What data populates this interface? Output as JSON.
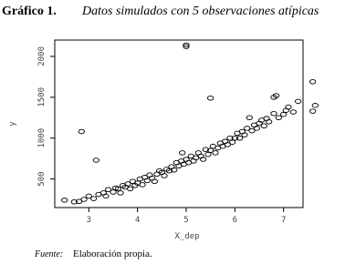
{
  "chart_data": {
    "type": "scatter",
    "title_number": "Gráfico 1.",
    "title": "Datos simulados con  5 observaciones atípicas",
    "x_label": "X_dep",
    "y_label": "y",
    "x": [
      2.5,
      2.7,
      2.8,
      2.9,
      3.0,
      3.1,
      3.2,
      3.3,
      3.35,
      3.4,
      3.5,
      3.55,
      3.6,
      3.65,
      3.7,
      3.75,
      3.8,
      3.85,
      3.9,
      3.95,
      4.0,
      4.05,
      4.1,
      4.15,
      4.2,
      4.25,
      4.3,
      4.35,
      4.4,
      4.45,
      4.5,
      4.55,
      4.6,
      4.65,
      4.7,
      4.75,
      4.8,
      4.85,
      4.9,
      4.92,
      4.95,
      5.0,
      5.05,
      5.1,
      5.15,
      5.2,
      5.25,
      5.3,
      5.35,
      5.4,
      5.45,
      5.5,
      5.55,
      5.6,
      5.65,
      5.7,
      5.75,
      5.8,
      5.85,
      5.9,
      5.95,
      6.0,
      6.05,
      6.1,
      6.15,
      6.2,
      6.25,
      6.3,
      6.35,
      6.4,
      6.45,
      6.5,
      6.55,
      6.6,
      6.65,
      6.7,
      6.8,
      6.9,
      7.0,
      7.05,
      7.1,
      7.2,
      7.3,
      7.6,
      7.65,
      2.85,
      3.15,
      5.0,
      5.0,
      5.5,
      6.8,
      6.85,
      7.6
    ],
    "y": [
      240,
      220,
      225,
      250,
      290,
      260,
      310,
      330,
      290,
      370,
      340,
      390,
      380,
      330,
      420,
      400,
      440,
      380,
      470,
      420,
      450,
      500,
      430,
      520,
      480,
      550,
      510,
      470,
      560,
      600,
      580,
      540,
      620,
      600,
      650,
      610,
      700,
      660,
      720,
      820,
      680,
      740,
      700,
      780,
      720,
      760,
      820,
      780,
      740,
      860,
      800,
      850,
      900,
      820,
      880,
      940,
      900,
      960,
      920,
      1000,
      950,
      1000,
      1060,
      1000,
      1080,
      1040,
      1120,
      1250,
      1090,
      1160,
      1120,
      1180,
      1220,
      1150,
      1240,
      1200,
      1300,
      1250,
      1290,
      1340,
      1380,
      1320,
      1450,
      1330,
      1400,
      1080,
      730,
      2140,
      2120,
      1490,
      1500,
      1520,
      1690
    ],
    "xlim": [
      2.3,
      7.4
    ],
    "ylim": [
      150,
      2200
    ],
    "xticks": [
      3,
      4,
      5,
      6,
      7
    ],
    "yticks": [
      500,
      1000,
      1500,
      2000
    ],
    "color": "#000000",
    "source_label": "Fuente:",
    "source": "Elaboración propia."
  }
}
